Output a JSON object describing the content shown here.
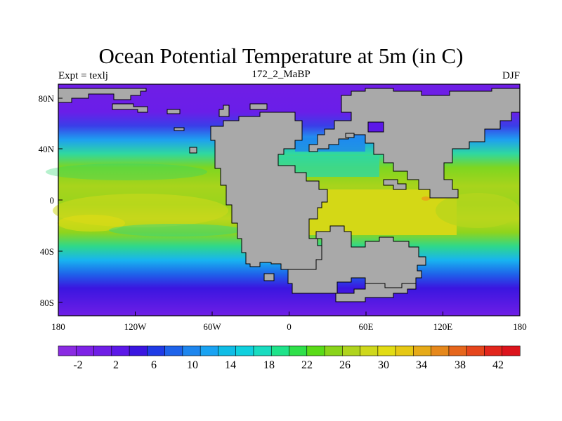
{
  "plot": {
    "title": "Ocean Potential Temperature at 5m (in C)",
    "left_label": "Expt = texlj",
    "center_label": "172_2_MaBP",
    "right_label": "DJF"
  },
  "axes": {
    "x_ticks": [
      "180",
      "120W",
      "60W",
      "0",
      "60E",
      "120E",
      "180"
    ],
    "y_ticks": [
      "80N",
      "40N",
      "0",
      "40S",
      "80S"
    ]
  },
  "colorbar": {
    "labels": [
      "-2",
      "2",
      "6",
      "10",
      "14",
      "18",
      "22",
      "26",
      "30",
      "34",
      "38",
      "42"
    ],
    "colors": [
      "#8a2be2",
      "#7e22e6",
      "#6f1ee6",
      "#5c18e8",
      "#3a16e0",
      "#1f3be6",
      "#1e63ea",
      "#1e86ee",
      "#1aa3f2",
      "#10bde6",
      "#10d0de",
      "#19dcc0",
      "#1fe38a",
      "#2fe04a",
      "#5adb18",
      "#8ad41a",
      "#b0d41e",
      "#cfd81c",
      "#e2dc14",
      "#e6c814",
      "#e6aa18",
      "#e6881c",
      "#e6661c",
      "#e6461c",
      "#e2261c",
      "#dc141c"
    ]
  },
  "colors": {
    "land": "#a9a9a9",
    "frame": "#000000"
  }
}
